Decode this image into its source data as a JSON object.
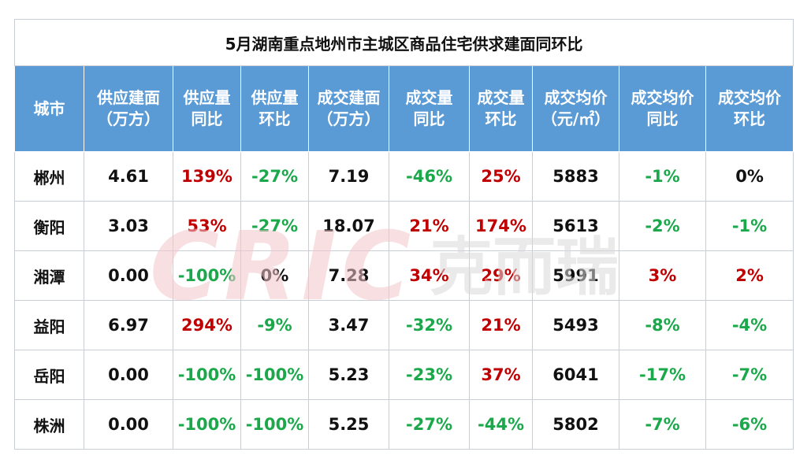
{
  "table": {
    "title": "5月湖南重点地州市主城区商品住宅供求建面同环比",
    "headers": [
      [
        "城市"
      ],
      [
        "供应建面",
        "（万方）"
      ],
      [
        "供应量",
        "同比"
      ],
      [
        "供应量",
        "环比"
      ],
      [
        "成交建面",
        "（万方）"
      ],
      [
        "成交量",
        "同比"
      ],
      [
        "成交量",
        "环比"
      ],
      [
        "成交均价",
        "（元/㎡）"
      ],
      [
        "成交均价",
        "同比"
      ],
      [
        "成交均价",
        "环比"
      ]
    ],
    "rows": [
      [
        "郴州",
        "4.61",
        "139%",
        "-27%",
        "7.19",
        "-46%",
        "25%",
        "5883",
        "-1%",
        "0%"
      ],
      [
        "衡阳",
        "3.03",
        "53%",
        "-27%",
        "18.07",
        "21%",
        "174%",
        "5613",
        "-2%",
        "-1%"
      ],
      [
        "湘潭",
        "0.00",
        "-100%",
        "0%",
        "7.28",
        "34%",
        "29%",
        "5991",
        "3%",
        "2%"
      ],
      [
        "益阳",
        "6.97",
        "294%",
        "-9%",
        "3.47",
        "-32%",
        "21%",
        "5493",
        "-8%",
        "-4%"
      ],
      [
        "岳阳",
        "0.00",
        "-100%",
        "-100%",
        "5.23",
        "-23%",
        "37%",
        "6041",
        "-17%",
        "-7%"
      ],
      [
        "株洲",
        "0.00",
        "-100%",
        "-100%",
        "5.25",
        "-27%",
        "-44%",
        "5802",
        "-7%",
        "-6%"
      ]
    ]
  },
  "watermark": {
    "latin": "CRIC",
    "cn": "克而瑞"
  },
  "colors": {
    "header_bg": "#5b9bd5",
    "positive": "#c00000",
    "negative": "#1aa84a"
  }
}
